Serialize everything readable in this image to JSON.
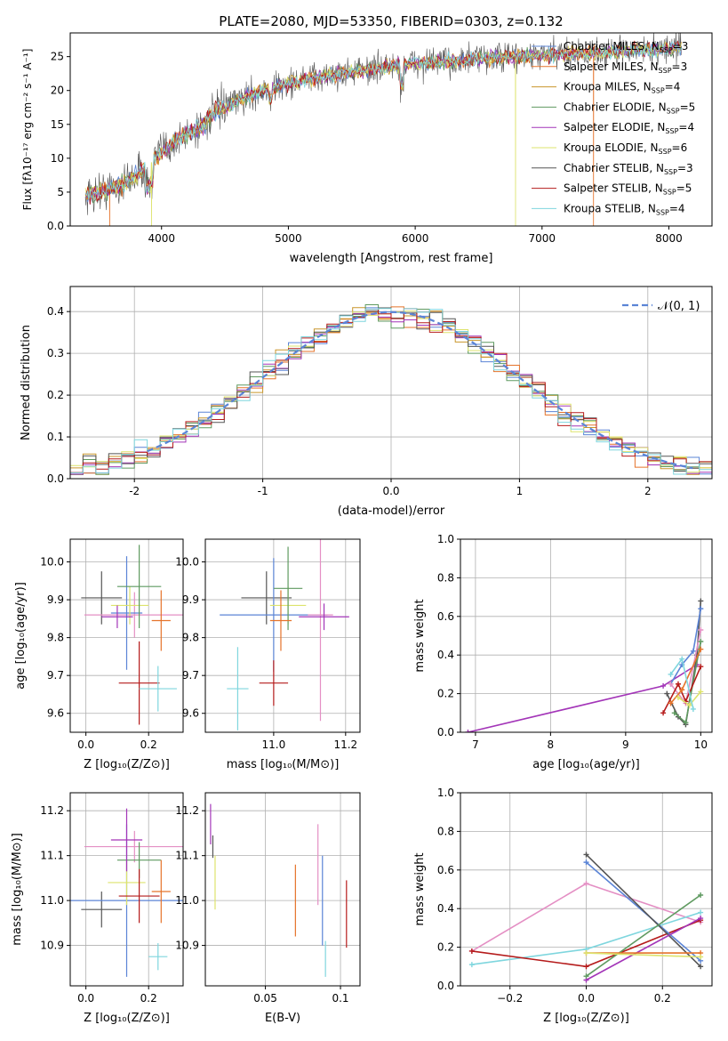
{
  "chart_data": [
    {
      "id": "spectrum",
      "type": "line",
      "title": "PLATE=2080, MJD=53350, FIBERID=0303, z=0.132",
      "xlabel": "wavelength [Angstrom, rest frame]",
      "ylabel": "Flux [fλ10⁻¹⁷ erg cm⁻² s⁻¹ A⁻¹]",
      "xlim": [
        3280,
        8340
      ],
      "ylim": [
        0,
        28.5
      ],
      "xticks": [
        4000,
        5000,
        6000,
        7000,
        8000
      ],
      "yticks": [
        0,
        5,
        10,
        15,
        20,
        25
      ],
      "grid": false,
      "legend_position": "right",
      "legend": [
        {
          "label": "Chabrier MILES, N",
          "sub": "SSP",
          "suffix": "=3",
          "color": "#5b84d6"
        },
        {
          "label": "Salpeter MILES, N",
          "sub": "SSP",
          "suffix": "=3",
          "color": "#e5732a"
        },
        {
          "label": "Kroupa MILES, N",
          "sub": "SSP",
          "suffix": "=4",
          "color": "#c9962b"
        },
        {
          "label": "Chabrier ELODIE, N",
          "sub": "SSP",
          "suffix": "=5",
          "color": "#5f9a60"
        },
        {
          "label": "Salpeter ELODIE, N",
          "sub": "SSP",
          "suffix": "=4",
          "color": "#a335b8"
        },
        {
          "label": "Kroupa ELODIE, N",
          "sub": "SSP",
          "suffix": "=6",
          "color": "#dde36c"
        },
        {
          "label": "Chabrier STELIB, N",
          "sub": "SSP",
          "suffix": "=3",
          "color": "#555555"
        },
        {
          "label": "Salpeter STELIB, N",
          "sub": "SSP",
          "suffix": "=5",
          "color": "#b51b1b"
        },
        {
          "label": "Kroupa STELIB, N",
          "sub": "SSP",
          "suffix": "=4",
          "color": "#7fd6de"
        }
      ],
      "envelope": {
        "x": [
          3400,
          3500,
          3600,
          3700,
          3800,
          3900,
          4000,
          4100,
          4200,
          4300,
          4400,
          4600,
          4800,
          5000,
          5200,
          5400,
          5600,
          5800,
          6000,
          6200,
          6400,
          6600,
          6800,
          7000,
          7200,
          7400,
          7600,
          7800,
          8000,
          8100
        ],
        "y": [
          4.5,
          5.0,
          5.5,
          6.2,
          7.5,
          9.0,
          11.0,
          12.5,
          13.5,
          14.5,
          16.5,
          18.5,
          20.0,
          21.0,
          21.8,
          22.5,
          23.0,
          23.5,
          24.0,
          24.2,
          24.5,
          24.8,
          25.0,
          25.2,
          25.4,
          25.6,
          25.8,
          26.0,
          26.2,
          26.3
        ]
      },
      "drops": [
        {
          "x": 3590,
          "series": "Salpeter MILES"
        },
        {
          "x": 3920,
          "series": "Kroupa ELODIE"
        },
        {
          "x": 6790,
          "series": "Kroupa ELODIE"
        },
        {
          "x": 7405,
          "series": "Salpeter MILES"
        }
      ],
      "xrange_data": [
        3400,
        8100
      ]
    },
    {
      "id": "residuals",
      "type": "line",
      "xlabel": "(data-model)/error",
      "ylabel": "Normed distribution",
      "xlim": [
        -2.5,
        2.5
      ],
      "ylim": [
        0,
        0.46
      ],
      "xticks": [
        -2,
        -1,
        0,
        1,
        2
      ],
      "yticks": [
        0.0,
        0.1,
        0.2,
        0.3,
        0.4
      ],
      "grid": true,
      "legend_position": "top-right",
      "legend": [
        {
          "label": "𝒩(0, 1)",
          "style": "dashed",
          "color": "#5b84d6"
        }
      ],
      "reference_curve": "normal(0,1)"
    },
    {
      "id": "age_vs_Z",
      "type": "scatter",
      "xlabel": "Z [log₁₀(Z/Z⊙)]",
      "ylabel": "age  [log₁₀(age/yr)]",
      "xlim": [
        -0.05,
        0.31
      ],
      "ylim": [
        9.55,
        10.06
      ],
      "xticks": [
        0.0,
        0.2
      ],
      "yticks": [
        9.6,
        9.7,
        9.8,
        9.9,
        10.0
      ],
      "grid": true,
      "points": [
        {
          "x": 0.05,
          "xerr": 0.065,
          "y": 9.905,
          "yerr": 0.07,
          "color": "#555555"
        },
        {
          "x": 0.155,
          "xerr": 0.16,
          "y": 9.86,
          "yerr": 0.06,
          "color": "#e48fc4"
        },
        {
          "x": 0.13,
          "xerr": 0.05,
          "y": 9.865,
          "yerr": 0.15,
          "color": "#5b84d6"
        },
        {
          "x": 0.14,
          "xerr": 0.06,
          "y": 9.885,
          "yerr": 0.05,
          "color": "#dde36c"
        },
        {
          "x": 0.17,
          "xerr": 0.07,
          "y": 9.935,
          "yerr": 0.11,
          "color": "#5f9a60"
        },
        {
          "x": 0.1,
          "xerr": 0.05,
          "y": 9.855,
          "yerr": 0.03,
          "color": "#a335b8"
        },
        {
          "x": 0.24,
          "xerr": 0.03,
          "y": 9.845,
          "yerr": 0.08,
          "color": "#e5732a"
        },
        {
          "x": 0.17,
          "xerr": 0.065,
          "y": 9.68,
          "yerr": 0.11,
          "color": "#b51b1b"
        },
        {
          "x": 0.23,
          "xerr": 0.06,
          "y": 9.665,
          "yerr": 0.06,
          "color": "#7fd6de"
        }
      ]
    },
    {
      "id": "age_vs_mass",
      "type": "scatter",
      "xlabel": "mass [log₁₀(M/M⊙)]",
      "xlim": [
        10.81,
        11.24
      ],
      "ylim": [
        9.55,
        10.06
      ],
      "xticks": [
        11.0,
        11.2
      ],
      "yticks": [
        9.6,
        9.7,
        9.8,
        9.9,
        10.0
      ],
      "grid": true,
      "points": [
        {
          "x": 10.98,
          "xerr": 0.07,
          "y": 9.905,
          "yerr": 0.07,
          "color": "#555555"
        },
        {
          "x": 11.0,
          "xerr": 0.15,
          "y": 9.86,
          "yerr": 0.15,
          "color": "#5b84d6"
        },
        {
          "x": 11.04,
          "xerr": 0.05,
          "y": 9.885,
          "yerr": 0.05,
          "color": "#dde36c"
        },
        {
          "x": 11.04,
          "xerr": 0.04,
          "y": 9.93,
          "yerr": 0.11,
          "color": "#5f9a60"
        },
        {
          "x": 11.02,
          "xerr": 0.03,
          "y": 9.845,
          "yerr": 0.08,
          "color": "#e5732a"
        },
        {
          "x": 11.13,
          "xerr": 0.035,
          "y": 9.86,
          "yerr": 0.28,
          "color": "#e48fc4"
        },
        {
          "x": 11.14,
          "xerr": 0.07,
          "y": 9.855,
          "yerr": 0.035,
          "color": "#a335b8"
        },
        {
          "x": 11.0,
          "xerr": 0.04,
          "y": 9.68,
          "yerr": 0.06,
          "color": "#b51b1b"
        },
        {
          "x": 10.9,
          "xerr": 0.03,
          "y": 9.665,
          "yerr": 0.11,
          "color": "#7fd6de"
        }
      ]
    },
    {
      "id": "weight_vs_age",
      "type": "line",
      "xlabel": "age  [log₁₀(age/yr)]",
      "ylabel": "mass weight",
      "xlim": [
        6.8,
        10.15
      ],
      "ylim": [
        0,
        1.0
      ],
      "xticks": [
        7,
        8,
        9,
        10
      ],
      "yticks": [
        0.0,
        0.2,
        0.4,
        0.6,
        0.8,
        1.0
      ],
      "grid": true,
      "series": [
        {
          "color": "#a335b8",
          "x": [
            6.9,
            9.5,
            9.95
          ],
          "y": [
            0.0,
            0.24,
            0.35
          ]
        },
        {
          "color": "#555555",
          "x": [
            9.55,
            9.7,
            9.8,
            9.95,
            10.0
          ],
          "y": [
            0.2,
            0.08,
            0.04,
            0.4,
            0.68
          ]
        },
        {
          "color": "#5b84d6",
          "x": [
            9.6,
            9.75,
            9.9,
            10.0
          ],
          "y": [
            0.25,
            0.35,
            0.42,
            0.64
          ]
        },
        {
          "color": "#e48fc4",
          "x": [
            9.6,
            9.8,
            10.0
          ],
          "y": [
            0.25,
            0.15,
            0.53
          ]
        },
        {
          "color": "#5f9a60",
          "x": [
            9.65,
            9.8,
            10.0
          ],
          "y": [
            0.1,
            0.05,
            0.47
          ]
        },
        {
          "color": "#b51b1b",
          "x": [
            9.5,
            9.7,
            9.8,
            10.0
          ],
          "y": [
            0.1,
            0.25,
            0.16,
            0.34
          ]
        },
        {
          "color": "#e5732a",
          "x": [
            9.6,
            9.75,
            10.0
          ],
          "y": [
            0.15,
            0.22,
            0.43
          ]
        },
        {
          "color": "#dde36c",
          "x": [
            9.7,
            9.85,
            10.0
          ],
          "y": [
            0.18,
            0.14,
            0.21
          ]
        },
        {
          "color": "#7fd6de",
          "x": [
            9.6,
            9.75,
            9.9
          ],
          "y": [
            0.3,
            0.38,
            0.12
          ]
        }
      ]
    },
    {
      "id": "mass_vs_Z",
      "type": "scatter",
      "xlabel": "Z [log₁₀(Z/Z⊙)]",
      "ylabel": "mass [log₁₀(M/M⊙)]",
      "xlim": [
        -0.05,
        0.31
      ],
      "ylim": [
        10.81,
        11.24
      ],
      "xticks": [
        0.0,
        0.2
      ],
      "yticks": [
        10.9,
        11.0,
        11.1,
        11.2
      ],
      "grid": true,
      "points": [
        {
          "x": 0.05,
          "xerr": 0.065,
          "y": 10.98,
          "yerr": 0.04,
          "color": "#555555"
        },
        {
          "x": 0.155,
          "xerr": 0.16,
          "y": 11.12,
          "yerr": 0.035,
          "color": "#e48fc4"
        },
        {
          "x": 0.13,
          "xerr": 0.18,
          "y": 11.0,
          "yerr": 0.17,
          "color": "#5b84d6"
        },
        {
          "x": 0.13,
          "xerr": 0.06,
          "y": 11.04,
          "yerr": 0.05,
          "color": "#dde36c"
        },
        {
          "x": 0.17,
          "xerr": 0.07,
          "y": 11.09,
          "yerr": 0.04,
          "color": "#5f9a60"
        },
        {
          "x": 0.13,
          "xerr": 0.05,
          "y": 11.135,
          "yerr": 0.07,
          "color": "#a335b8"
        },
        {
          "x": 0.24,
          "xerr": 0.03,
          "y": 11.02,
          "yerr": 0.07,
          "color": "#e5732a"
        },
        {
          "x": 0.17,
          "xerr": 0.065,
          "y": 11.01,
          "yerr": 0.06,
          "color": "#b51b1b"
        },
        {
          "x": 0.23,
          "xerr": 0.03,
          "y": 10.875,
          "yerr": 0.03,
          "color": "#7fd6de"
        }
      ]
    },
    {
      "id": "mass_vs_EBV",
      "type": "scatter",
      "xlabel": "E(B-V)",
      "xlim": [
        0.01,
        0.113
      ],
      "ylim": [
        10.81,
        11.24
      ],
      "xticks": [
        0.05,
        0.1
      ],
      "yticks": [
        10.9,
        11.0,
        11.1,
        11.2
      ],
      "grid": true,
      "points": [
        {
          "x": 0.0135,
          "y": 11.17,
          "yerr": 0.045,
          "color": "#a335b8"
        },
        {
          "x": 0.015,
          "y": 11.12,
          "yerr": 0.025,
          "color": "#555555"
        },
        {
          "x": 0.0165,
          "y": 11.04,
          "yerr": 0.06,
          "color": "#dde36c"
        },
        {
          "x": 0.07,
          "y": 11.0,
          "yerr": 0.08,
          "color": "#e5732a"
        },
        {
          "x": 0.085,
          "y": 11.08,
          "yerr": 0.09,
          "color": "#e48fc4"
        },
        {
          "x": 0.088,
          "y": 11.0,
          "yerr": 0.1,
          "color": "#5b84d6"
        },
        {
          "x": 0.09,
          "y": 10.87,
          "yerr": 0.04,
          "color": "#7fd6de"
        },
        {
          "x": 0.104,
          "y": 10.97,
          "yerr": 0.075,
          "color": "#b51b1b"
        }
      ]
    },
    {
      "id": "weight_vs_Z",
      "type": "line",
      "xlabel": "Z [log₁₀(Z/Z⊙)]",
      "ylabel": "mass weight",
      "xlim": [
        -0.33,
        0.33
      ],
      "ylim": [
        0,
        1.0
      ],
      "xticks": [
        -0.2,
        0.0,
        0.2
      ],
      "yticks": [
        0.0,
        0.2,
        0.4,
        0.6,
        0.8,
        1.0
      ],
      "grid": true,
      "series": [
        {
          "color": "#e48fc4",
          "x": [
            -0.3,
            0.0,
            0.3
          ],
          "y": [
            0.18,
            0.53,
            0.33
          ]
        },
        {
          "color": "#7fd6de",
          "x": [
            -0.3,
            0.0,
            0.3
          ],
          "y": [
            0.11,
            0.19,
            0.38
          ]
        },
        {
          "color": "#b51b1b",
          "x": [
            -0.3,
            0.0,
            0.3
          ],
          "y": [
            0.18,
            0.1,
            0.34
          ]
        },
        {
          "color": "#5b84d6",
          "x": [
            0.0,
            0.3
          ],
          "y": [
            0.64,
            0.13
          ]
        },
        {
          "color": "#555555",
          "x": [
            0.0,
            0.3
          ],
          "y": [
            0.68,
            0.1
          ]
        },
        {
          "color": "#a335b8",
          "x": [
            0.0,
            0.3
          ],
          "y": [
            0.03,
            0.35
          ]
        },
        {
          "color": "#5f9a60",
          "x": [
            0.0,
            0.3
          ],
          "y": [
            0.05,
            0.47
          ]
        },
        {
          "color": "#e5732a",
          "x": [
            0.0,
            0.3
          ],
          "y": [
            0.17,
            0.17
          ]
        },
        {
          "color": "#dde36c",
          "x": [
            0.0,
            0.3
          ],
          "y": [
            0.17,
            0.15
          ]
        }
      ]
    }
  ]
}
